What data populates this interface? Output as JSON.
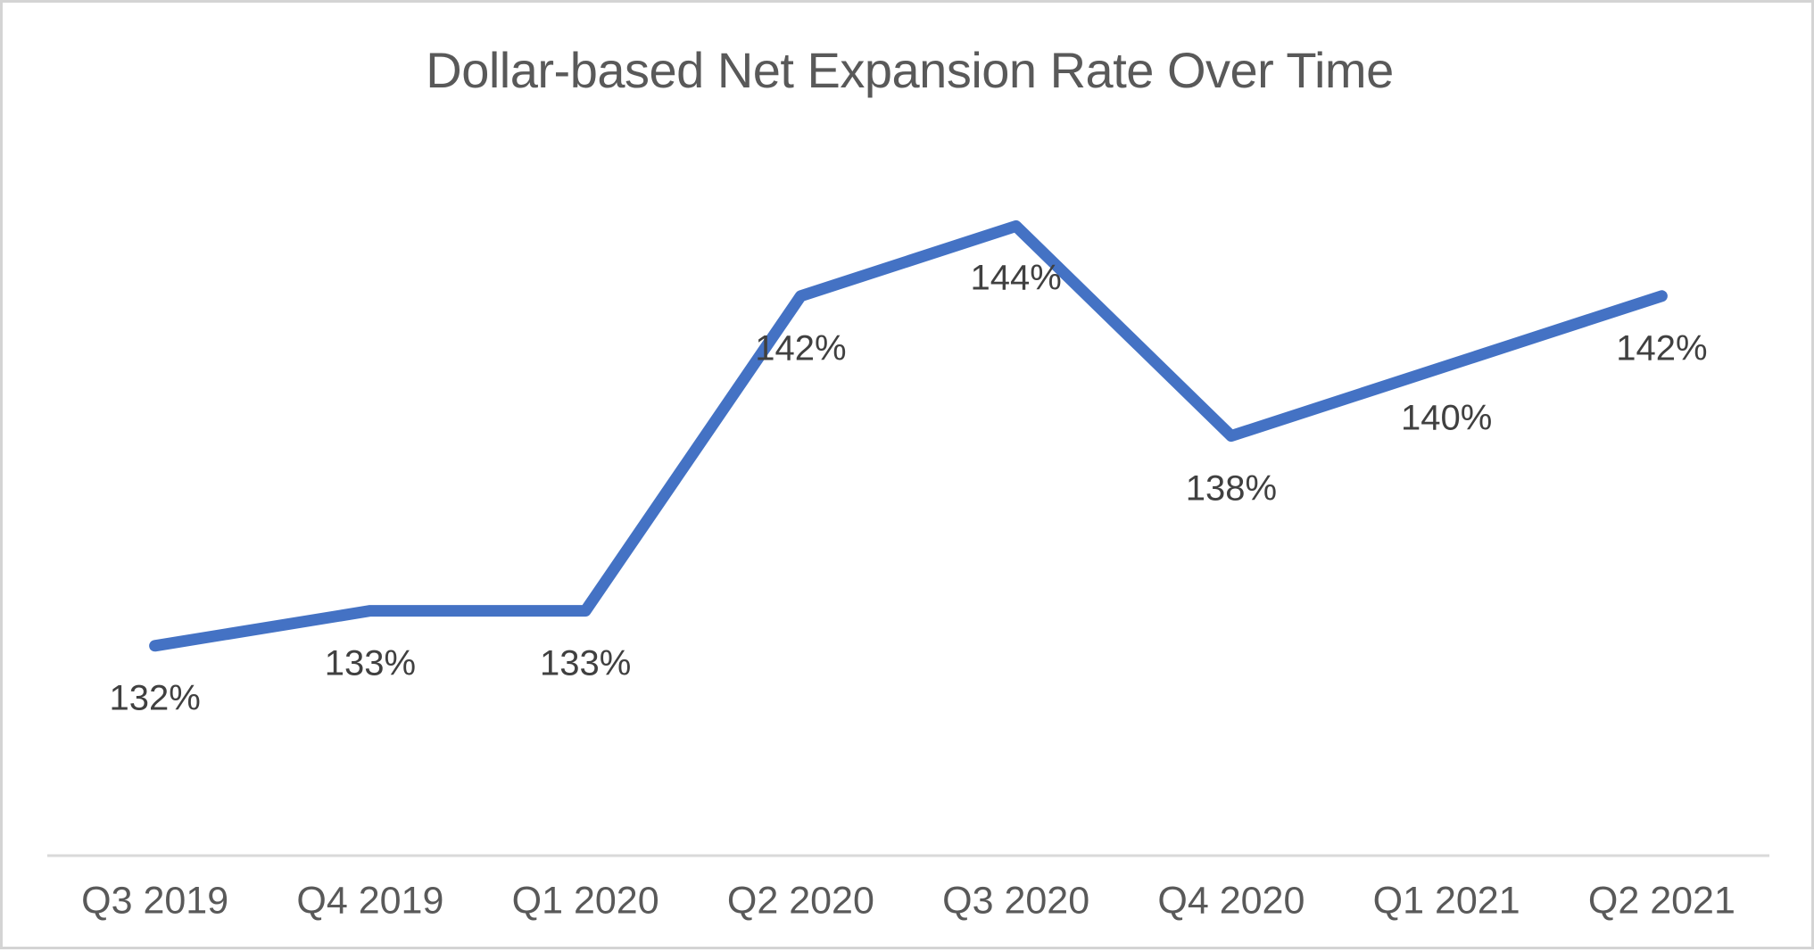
{
  "chart_data": {
    "type": "line",
    "title": "Dollar-based Net Expansion Rate Over Time",
    "categories": [
      "Q3 2019",
      "Q4 2019",
      "Q1 2020",
      "Q2 2020",
      "Q3 2020",
      "Q4 2020",
      "Q1 2021",
      "Q2 2021"
    ],
    "series": [
      {
        "name": "Dollar-based Net Expansion Rate",
        "values": [
          132,
          133,
          133,
          142,
          144,
          138,
          140,
          142
        ]
      }
    ],
    "data_labels": [
      "132%",
      "133%",
      "133%",
      "142%",
      "144%",
      "138%",
      "140%",
      "142%"
    ],
    "value_unit": "%",
    "ylim": [
      126,
      146
    ],
    "xlabel": "",
    "ylabel": "",
    "grid": false,
    "legend": false,
    "y_axis_visible": false,
    "data_label_position": "below",
    "colors": {
      "line": "#4472C4",
      "title": "#595959",
      "data_label": "#404040",
      "axis_label": "#595959",
      "axis_line": "#D9D9D9",
      "background": "#FFFFFF",
      "border": "#D4D4D4"
    }
  }
}
